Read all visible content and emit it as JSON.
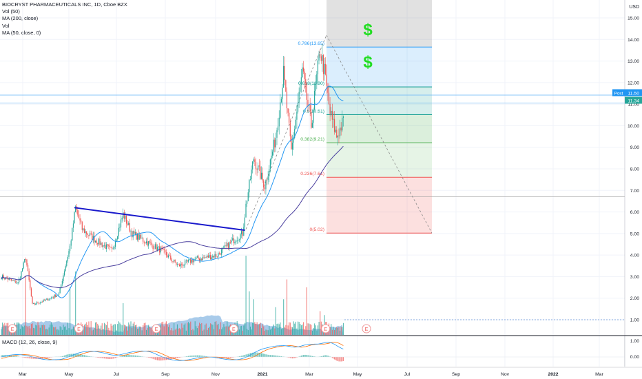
{
  "header": {
    "symbol": "BIOCRYST PHARMACEUTICALS INC, 1D, Cboe BZX",
    "indicators": [
      "Vol (50)",
      "MA (200, close)",
      "Vol",
      "MA (50, close, 0)"
    ],
    "macd_label": "MACD (12, 26, close, 9)",
    "currency": "USD"
  },
  "colors": {
    "up": "#26a69a",
    "down": "#ef5350",
    "ma50": "#2196f3",
    "ma200": "#4a3f9e",
    "trendline": "#1a1acc",
    "dollar": "#22dd22",
    "macd": "#2196f3",
    "signal": "#ff6d00"
  },
  "annotations": {
    "dollar_sign": "$"
  },
  "chart_data": {
    "type": "candlestick",
    "title": "BIOCRYST PHARMACEUTICALS INC, 1D, Cboe BZX",
    "ylim": [
      0.6,
      15.5
    ],
    "y_ticks": [
      "15.00",
      "14.00",
      "13.00",
      "12.00",
      "11.00",
      "10.00",
      "9.00",
      "8.00",
      "7.00",
      "6.00",
      "5.00",
      "4.00",
      "3.00",
      "2.00",
      "1.00"
    ],
    "x_ticks": [
      "Mar",
      "May",
      "Jul",
      "Sep",
      "Nov",
      "2021",
      "Mar",
      "May",
      "Jul",
      "Sep",
      "Nov",
      "2022",
      "Mar"
    ],
    "price_anchors": [
      {
        "d": 0,
        "p": 3.0
      },
      {
        "d": 15,
        "p": 2.7
      },
      {
        "d": 22,
        "p": 3.9
      },
      {
        "d": 28,
        "p": 1.7
      },
      {
        "d": 40,
        "p": 1.9
      },
      {
        "d": 52,
        "p": 2.2
      },
      {
        "d": 62,
        "p": 4.4
      },
      {
        "d": 67,
        "p": 6.2
      },
      {
        "d": 73,
        "p": 5.2
      },
      {
        "d": 85,
        "p": 4.7
      },
      {
        "d": 100,
        "p": 4.2
      },
      {
        "d": 110,
        "p": 5.9
      },
      {
        "d": 118,
        "p": 5.0
      },
      {
        "d": 128,
        "p": 4.7
      },
      {
        "d": 145,
        "p": 4.2
      },
      {
        "d": 160,
        "p": 3.5
      },
      {
        "d": 175,
        "p": 3.8
      },
      {
        "d": 195,
        "p": 4.0
      },
      {
        "d": 210,
        "p": 4.7
      },
      {
        "d": 218,
        "p": 5.0
      },
      {
        "d": 221,
        "p": 6.3
      },
      {
        "d": 228,
        "p": 8.5
      },
      {
        "d": 238,
        "p": 7.2
      },
      {
        "d": 248,
        "p": 9.5
      },
      {
        "d": 255,
        "p": 12.4
      },
      {
        "d": 262,
        "p": 8.8
      },
      {
        "d": 272,
        "p": 12.5
      },
      {
        "d": 280,
        "p": 10.0
      },
      {
        "d": 288,
        "p": 13.5
      },
      {
        "d": 292,
        "p": 12.5
      },
      {
        "d": 297,
        "p": 10.6
      },
      {
        "d": 303,
        "p": 9.5
      },
      {
        "d": 309,
        "p": 10.2
      }
    ],
    "volume_spikes": [
      {
        "d": 22,
        "v": 0.75
      },
      {
        "d": 62,
        "v": 0.6
      },
      {
        "d": 67,
        "v": 0.8
      },
      {
        "d": 110,
        "v": 0.4
      },
      {
        "d": 221,
        "v": 1.0
      },
      {
        "d": 224,
        "v": 0.55
      },
      {
        "d": 228,
        "v": 0.45
      },
      {
        "d": 248,
        "v": 0.35
      },
      {
        "d": 255,
        "v": 0.45
      },
      {
        "d": 258,
        "v": 0.7
      },
      {
        "d": 276,
        "v": 0.6
      },
      {
        "d": 288,
        "v": 0.3
      },
      {
        "d": 292,
        "v": 0.25
      }
    ],
    "volume_dates": [
      "E",
      "E",
      "E",
      "E",
      "E",
      "E"
    ],
    "trendline": {
      "from": {
        "d": 66,
        "p": 6.2
      },
      "to": {
        "d": 220,
        "p": 5.15
      }
    },
    "fibonacci": {
      "levels": [
        {
          "ratio": "0",
          "label": "0(5.02)",
          "price": 5.02,
          "color": "#ef5350",
          "fill": "rgba(239,83,80,0.18)"
        },
        {
          "ratio": "0.236",
          "label": "0.236(7.61)",
          "price": 7.61,
          "color": "#ef5350",
          "fill": "rgba(76,175,80,0.14)"
        },
        {
          "ratio": "0.382",
          "label": "0.382(9.21)",
          "price": 9.21,
          "color": "#4caf50",
          "fill": "rgba(76,175,80,0.2)"
        },
        {
          "ratio": "0.5",
          "label": "0.5(10.51)",
          "price": 10.51,
          "color": "#009688",
          "fill": "rgba(0,150,136,0.16)"
        },
        {
          "ratio": "0.618",
          "label": "0.618(11.80)",
          "price": 11.8,
          "color": "#009688",
          "fill": "rgba(33,150,243,0.16)"
        },
        {
          "ratio": "0.786",
          "label": "0.786(13.65)",
          "price": 13.65,
          "color": "#2196f3",
          "fill": "rgba(120,120,120,0.22)"
        }
      ],
      "top_price": 15.5
    },
    "current_prices": [
      {
        "label": "Post",
        "value": "11.50",
        "price": 11.5
      },
      {
        "label": "",
        "value": "11.34",
        "price": 11.34
      }
    ],
    "macd_ticks": [
      "1.00",
      "0.00"
    ]
  }
}
